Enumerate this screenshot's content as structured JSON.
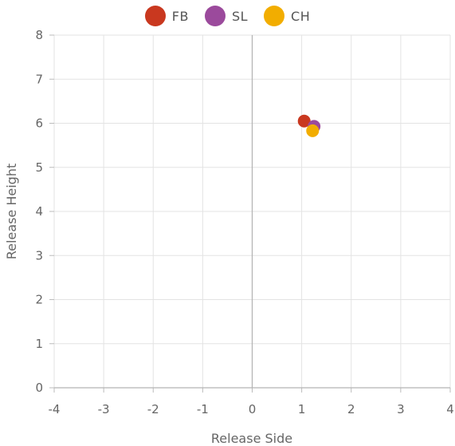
{
  "chart_data": {
    "type": "scatter",
    "title": "",
    "xlabel": "Release Side",
    "ylabel": "Release Height",
    "xlim": [
      -4,
      4
    ],
    "ylim": [
      0,
      8
    ],
    "x_ticks": [
      -4,
      -3,
      -2,
      -1,
      0,
      1,
      2,
      3,
      4
    ],
    "y_ticks": [
      0,
      1,
      2,
      3,
      4,
      5,
      6,
      7,
      8
    ],
    "grid": true,
    "legend_position": "top-center",
    "series": [
      {
        "name": "FB",
        "color": "#c9381f",
        "points": [
          {
            "x": 1.05,
            "y": 6.05
          }
        ]
      },
      {
        "name": "SL",
        "color": "#9b4a9c",
        "points": [
          {
            "x": 1.25,
            "y": 5.93
          }
        ]
      },
      {
        "name": "CH",
        "color": "#f2ad00",
        "points": [
          {
            "x": 1.22,
            "y": 5.83
          }
        ]
      }
    ]
  }
}
